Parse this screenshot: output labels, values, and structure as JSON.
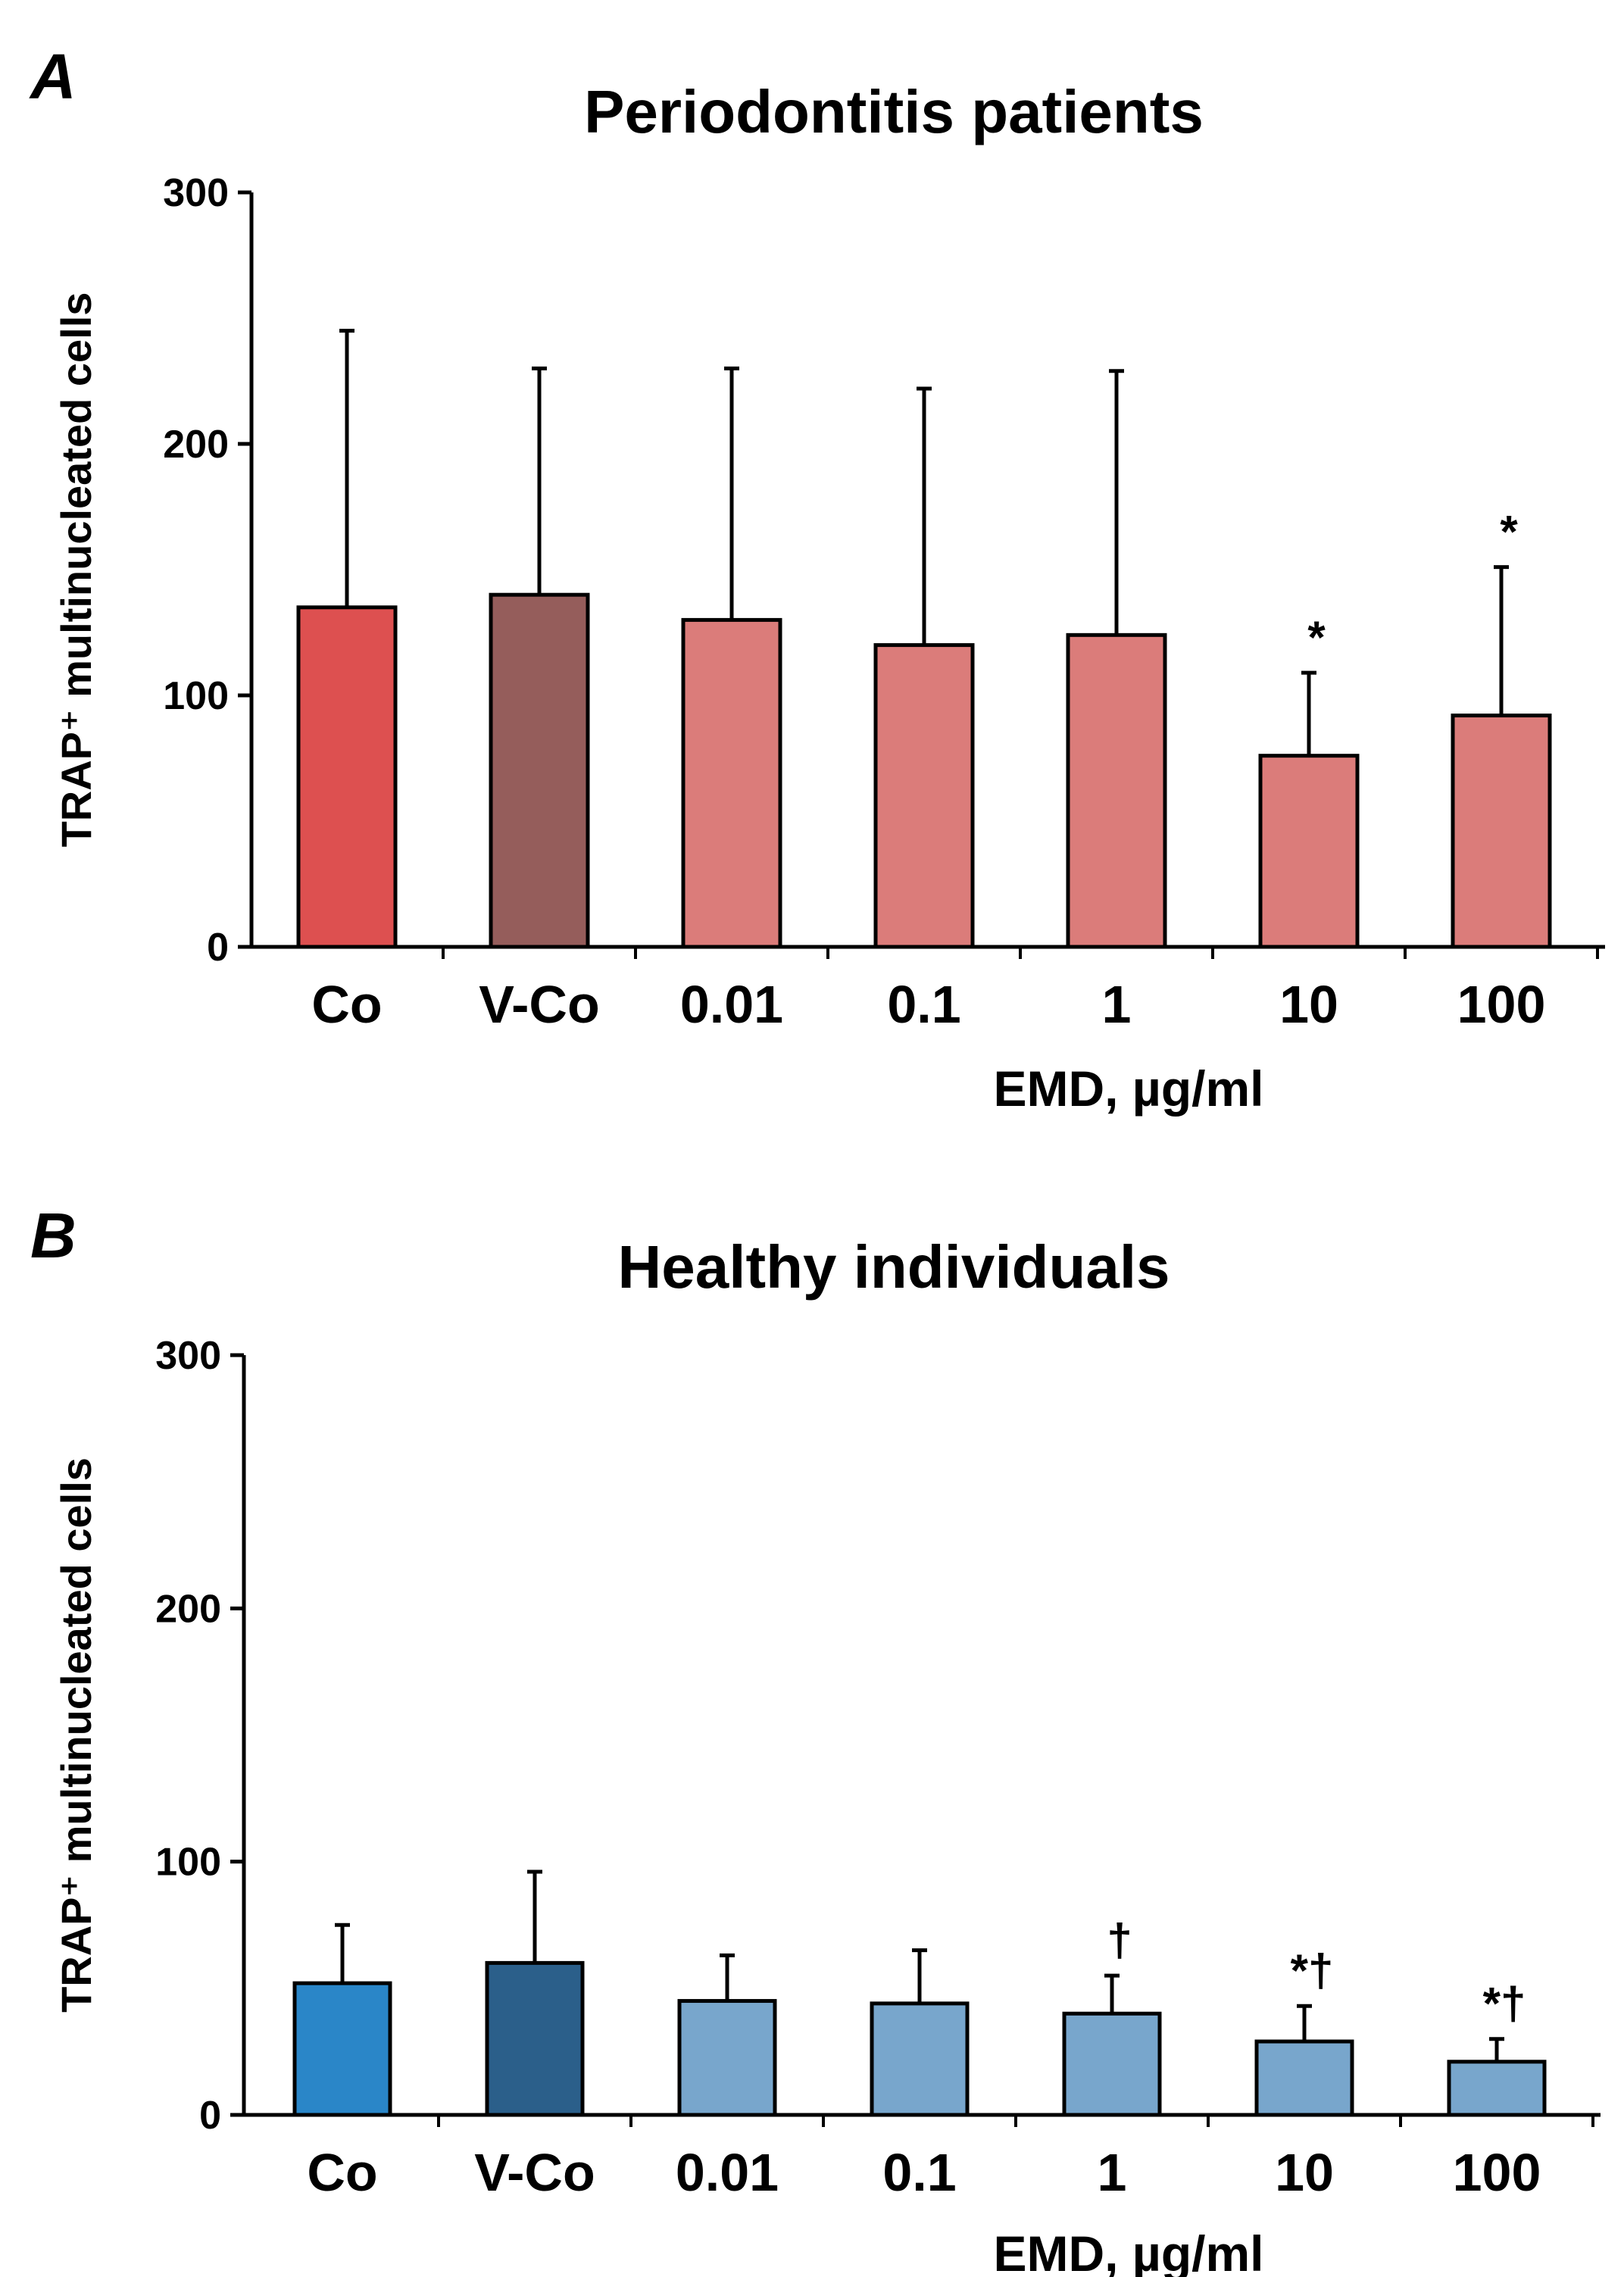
{
  "chart_data": [
    {
      "type": "bar",
      "panel": "A",
      "title": "Periodontitis patients",
      "ylabel": "TRAP⁺ multinucleated cells",
      "xlabel": "EMD, µg/ml",
      "ylim": [
        0,
        300
      ],
      "yticks": [
        "0",
        "100",
        "200",
        "300"
      ],
      "categories": [
        "Co",
        "V-Co",
        "0.01",
        "0.1",
        "1",
        "10",
        "100"
      ],
      "values": [
        135,
        140,
        130,
        120,
        124,
        76,
        92
      ],
      "error_upper": [
        245,
        230,
        230,
        222,
        229,
        109,
        151
      ],
      "annotations": [
        "",
        "",
        "",
        "",
        "",
        "*",
        "*"
      ],
      "colors": [
        "#dd5050",
        "#955d5b",
        "#db7c7a",
        "#db7c7a",
        "#db7c7a",
        "#db7c7a",
        "#db7c7a"
      ],
      "grid": false
    },
    {
      "type": "bar",
      "panel": "B",
      "title": "Healthy individuals",
      "ylabel": "TRAP⁺ multinucleated cells",
      "xlabel": "EMD, µg/ml",
      "ylim": [
        0,
        300
      ],
      "yticks": [
        "0",
        "100",
        "200",
        "300"
      ],
      "categories": [
        "Co",
        "V-Co",
        "0.01",
        "0.1",
        "1",
        "10",
        "100"
      ],
      "values": [
        52,
        60,
        45,
        44,
        40,
        29,
        21
      ],
      "error_upper": [
        75,
        96,
        63,
        65,
        55,
        43,
        30
      ],
      "annotations": [
        "",
        "",
        "",
        "",
        "†",
        "*†",
        "*†"
      ],
      "colors": [
        "#2a86c8",
        "#2b5f8a",
        "#78a6cc",
        "#78a6cc",
        "#78a6cc",
        "#78a6cc",
        "#78a6cc"
      ],
      "grid": false
    }
  ]
}
